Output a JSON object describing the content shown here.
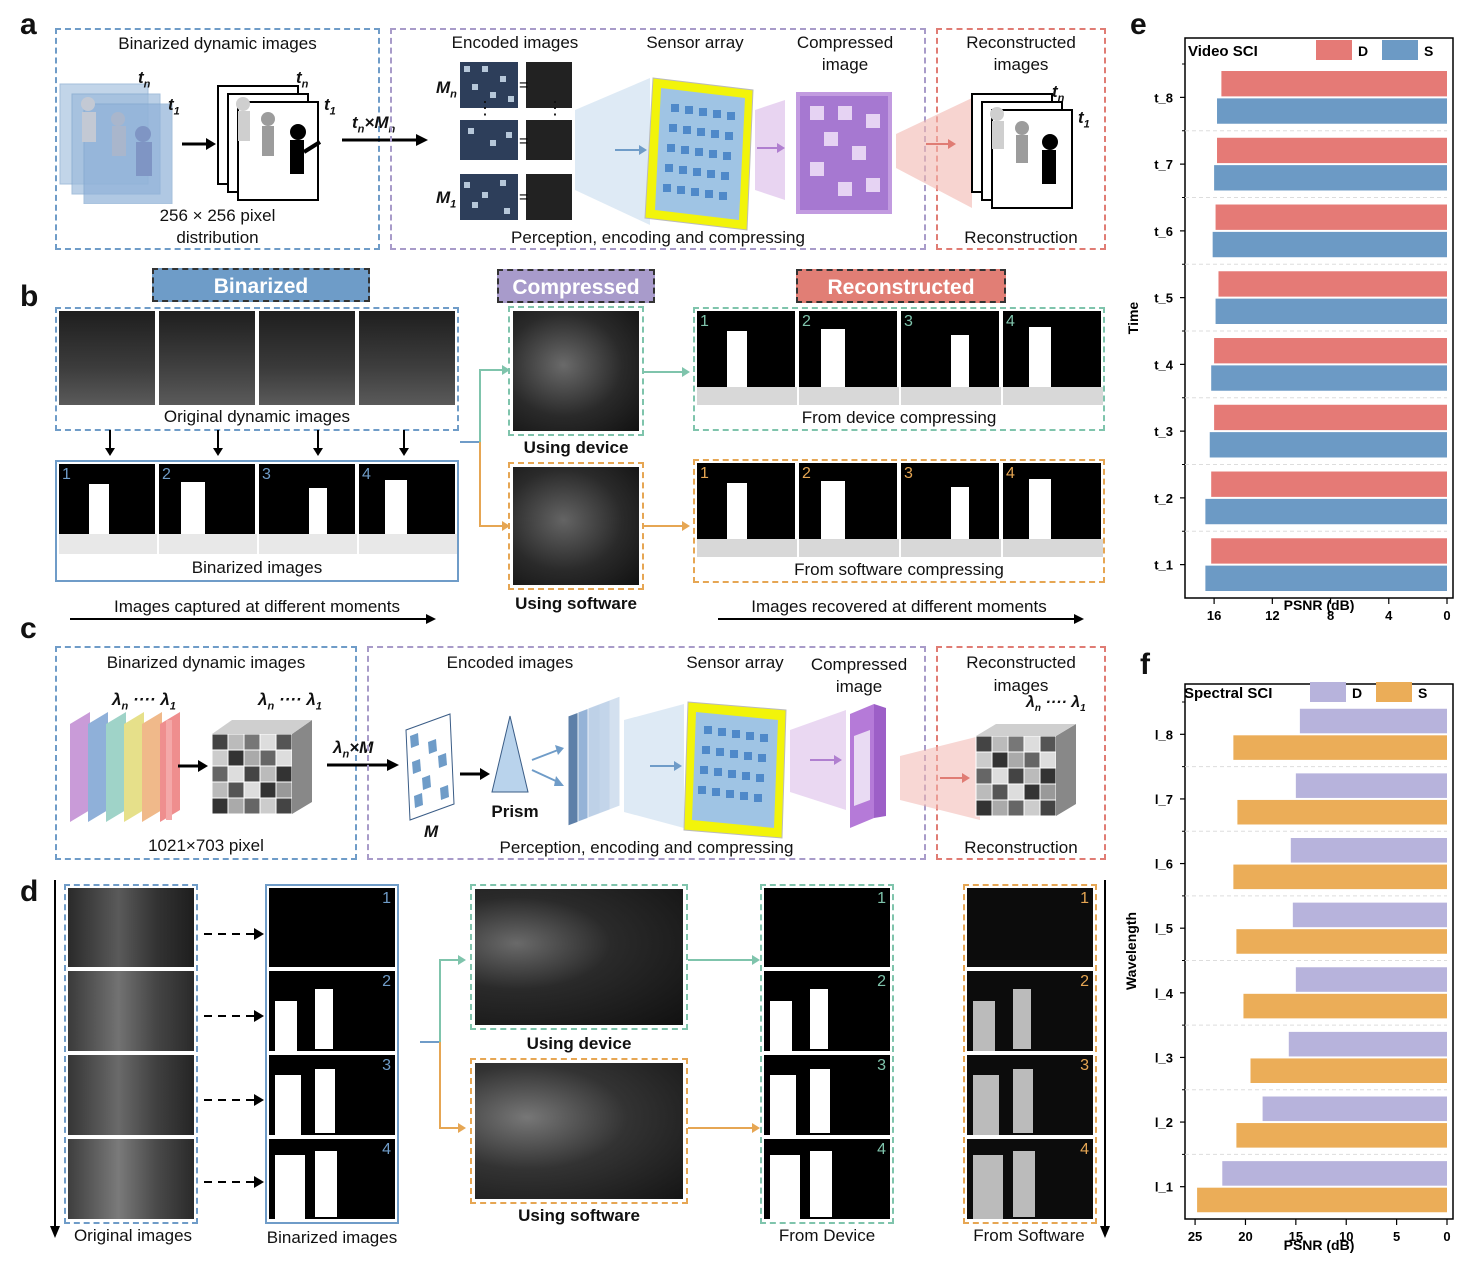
{
  "panel_labels": {
    "a": "a",
    "b": "b",
    "c": "c",
    "d": "d",
    "e": "e",
    "f": "f"
  },
  "a": {
    "binarized_title": "Binarized dynamic images",
    "pixel_line1": "256 × 256 pixel",
    "pixel_line2": "distribution",
    "tn": "t",
    "tn_sub": "n",
    "t1_sub": "1",
    "mult_t": "t",
    "mult_n": "n",
    "mult_x": "×",
    "mult_M": "M",
    "encoded_title": "Encoded images",
    "sensor_title": "Sensor array",
    "compressed_line1": "Compressed",
    "compressed_line2": "image",
    "reconstructed_line1": "Reconstructed",
    "reconstructed_line2": "images",
    "Mn": "M",
    "M1": "M",
    "eq": "=",
    "dots": "⋮",
    "perception": "Perception, encoding and compressing",
    "reconstruction": "Reconstruction"
  },
  "b": {
    "binarized_header": "Binarized",
    "compressed_header": "Compressed",
    "reconstructed_header": "Reconstructed",
    "original_caption": "Original dynamic images",
    "binarized_caption": "Binarized images",
    "using_device": "Using device",
    "using_software": "Using software",
    "from_device": "From device compressing",
    "from_software": "From software compressing",
    "captured": "Images captured at different moments",
    "recovered": "Images recovered at different moments",
    "numbers": [
      "1",
      "2",
      "3",
      "4"
    ]
  },
  "c": {
    "binarized_title": "Binarized dynamic images",
    "pixel": "1021×703 pixel",
    "lambda": "λ",
    "lambda_n": "n",
    "lambda_1": "1",
    "mult": "×M",
    "M": "M",
    "encoded_title": "Encoded images",
    "prism": "Prism",
    "sensor_title": "Sensor array",
    "compressed_line1": "Compressed",
    "compressed_line2": "image",
    "reconstructed_line1": "Reconstructed",
    "reconstructed_line2": "images",
    "perception": "Perception, encoding and compressing",
    "reconstruction": "Reconstruction"
  },
  "d": {
    "original": "Original images",
    "binarized": "Binarized images",
    "using_device": "Using device",
    "using_software": "Using software",
    "from_device": "From Device",
    "from_software": "From Software",
    "numbers": [
      "1",
      "2",
      "3",
      "4"
    ]
  },
  "chart_data": [
    {
      "type": "bar",
      "orientation": "horizontal",
      "title": "Video SCI",
      "xlabel": "PSNR (dB)",
      "ylabel": "Time",
      "categories": [
        "t_1",
        "t_2",
        "t_3",
        "t_4",
        "t_5",
        "t_6",
        "t_7",
        "t_8"
      ],
      "xlim": [
        18,
        0
      ],
      "xticks": [
        "16",
        "12",
        "8",
        "4",
        "0"
      ],
      "series": [
        {
          "name": "D",
          "color": "#e57a76",
          "values": [
            16.2,
            16.2,
            16.0,
            16.0,
            15.7,
            15.9,
            15.8,
            15.5
          ]
        },
        {
          "name": "S",
          "color": "#6c9ac5",
          "values": [
            16.6,
            16.6,
            16.3,
            16.2,
            15.9,
            16.1,
            16.0,
            15.8
          ]
        }
      ],
      "legend": "top-right"
    },
    {
      "type": "bar",
      "orientation": "horizontal",
      "title": "Spectral SCI",
      "xlabel": "PSNR (dB)",
      "ylabel": "Wavelength",
      "categories": [
        "l_1",
        "l_2",
        "l_3",
        "l_4",
        "l_5",
        "l_6",
        "l_7",
        "l_8"
      ],
      "xlim": [
        26,
        0
      ],
      "xticks": [
        "25",
        "20",
        "15",
        "10",
        "5",
        "0"
      ],
      "series": [
        {
          "name": "D",
          "color": "#b7b3dc",
          "values": [
            22.3,
            18.3,
            15.7,
            15.0,
            15.3,
            15.5,
            15.0,
            14.6
          ]
        },
        {
          "name": "S",
          "color": "#ebad58",
          "values": [
            24.8,
            20.9,
            19.5,
            20.2,
            20.9,
            21.2,
            20.8,
            21.2
          ]
        }
      ],
      "legend": "top-right"
    }
  ]
}
